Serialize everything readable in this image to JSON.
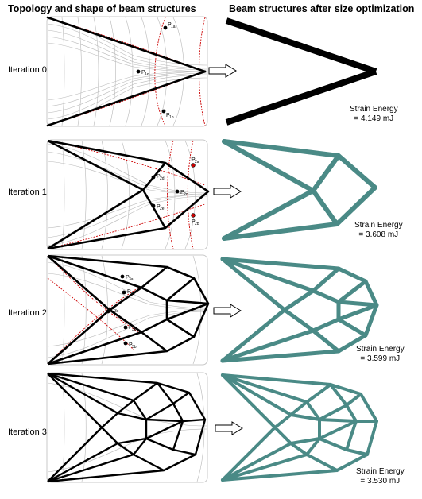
{
  "headers": {
    "left": "Topology and shape of beam structures",
    "right": "Beam structures after size optimization"
  },
  "strain_energy_label": "Strain Energy",
  "colors": {
    "iteration_0_beams": "#000000",
    "optimized_beams": "#4a8a86",
    "guide_curves": "#cc0000",
    "stress_lines": "#b8b8b8"
  },
  "rows": [
    {
      "label": "Iteration 0",
      "energy": "= 4.149 mJ",
      "points": [
        {
          "name": "P1a",
          "main": "P",
          "sub": "1a"
        },
        {
          "name": "P1c",
          "main": "P",
          "sub": "1c"
        },
        {
          "name": "P1b",
          "main": "P",
          "sub": "1b"
        }
      ]
    },
    {
      "label": "Iteration 1",
      "energy": "= 3.608 mJ",
      "points": [
        {
          "name": "P2a",
          "main": "P",
          "sub": "2a"
        },
        {
          "name": "P2d",
          "main": "P",
          "sub": "2d"
        },
        {
          "name": "P2c",
          "main": "P",
          "sub": "2c"
        },
        {
          "name": "P2e",
          "main": "P",
          "sub": "2e"
        },
        {
          "name": "P2b",
          "main": "P",
          "sub": "2b"
        }
      ]
    },
    {
      "label": "Iteration 2",
      "energy": "= 3.599 mJ",
      "points": [
        {
          "name": "P3a",
          "main": "P",
          "sub": "3a"
        },
        {
          "name": "P3d",
          "main": "P",
          "sub": "3d"
        },
        {
          "name": "P3c",
          "main": "P",
          "sub": "3c"
        },
        {
          "name": "P3e",
          "main": "P",
          "sub": "3e"
        },
        {
          "name": "P3b",
          "main": "P",
          "sub": "3b"
        }
      ]
    },
    {
      "label": "Iteration 3",
      "energy": "= 3.530 mJ",
      "points": []
    }
  ]
}
